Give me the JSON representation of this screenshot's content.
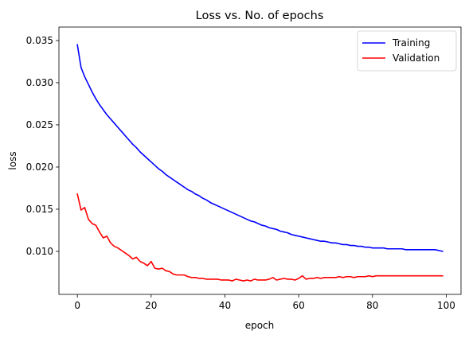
{
  "chart_data": {
    "type": "line",
    "title": "Loss vs. No. of epochs",
    "xlabel": "epoch",
    "ylabel": "loss",
    "xlim": [
      -5,
      104
    ],
    "ylim": [
      0.0049,
      0.0366
    ],
    "xticks": [
      0,
      20,
      40,
      60,
      80,
      100
    ],
    "xtick_labels": [
      "0",
      "20",
      "40",
      "60",
      "80",
      "100"
    ],
    "yticks": [
      0.01,
      0.015,
      0.02,
      0.025,
      0.03,
      0.035
    ],
    "ytick_labels": [
      "0.010",
      "0.015",
      "0.020",
      "0.025",
      "0.030",
      "0.035"
    ],
    "grid": false,
    "legend_position": "top-right",
    "series": [
      {
        "name": "Training",
        "color": "#0000ff",
        "x": [
          0,
          1,
          2,
          3,
          4,
          5,
          6,
          7,
          8,
          9,
          10,
          11,
          12,
          13,
          14,
          15,
          16,
          17,
          18,
          19,
          20,
          21,
          22,
          23,
          24,
          25,
          26,
          27,
          28,
          29,
          30,
          31,
          32,
          33,
          34,
          35,
          36,
          37,
          38,
          39,
          40,
          41,
          42,
          43,
          44,
          45,
          46,
          47,
          48,
          49,
          50,
          51,
          52,
          53,
          54,
          55,
          56,
          57,
          58,
          59,
          60,
          61,
          62,
          63,
          64,
          65,
          66,
          67,
          68,
          69,
          70,
          71,
          72,
          73,
          74,
          75,
          76,
          77,
          78,
          79,
          80,
          81,
          82,
          83,
          84,
          85,
          86,
          87,
          88,
          89,
          90,
          91,
          92,
          93,
          94,
          95,
          96,
          97,
          98,
          99
        ],
        "values": [
          0.0345,
          0.0318,
          0.0307,
          0.0298,
          0.0289,
          0.0281,
          0.0274,
          0.0268,
          0.0262,
          0.0257,
          0.0252,
          0.0247,
          0.0242,
          0.0237,
          0.0232,
          0.0227,
          0.0223,
          0.0218,
          0.0214,
          0.021,
          0.0206,
          0.0202,
          0.0198,
          0.0195,
          0.0191,
          0.0188,
          0.0185,
          0.0182,
          0.0179,
          0.0176,
          0.0173,
          0.0171,
          0.0168,
          0.0166,
          0.0163,
          0.0161,
          0.0158,
          0.0156,
          0.0154,
          0.0152,
          0.015,
          0.0148,
          0.0146,
          0.0144,
          0.0142,
          0.014,
          0.0138,
          0.0136,
          0.0135,
          0.0133,
          0.0131,
          0.013,
          0.0128,
          0.0127,
          0.0126,
          0.0124,
          0.0123,
          0.0122,
          0.012,
          0.0119,
          0.0118,
          0.0117,
          0.0116,
          0.0115,
          0.0114,
          0.0113,
          0.0112,
          0.0112,
          0.0111,
          0.011,
          0.011,
          0.0109,
          0.0108,
          0.0108,
          0.0107,
          0.0107,
          0.0106,
          0.0106,
          0.0105,
          0.0105,
          0.0104,
          0.0104,
          0.0104,
          0.0104,
          0.0103,
          0.0103,
          0.0103,
          0.0103,
          0.0103,
          0.0102,
          0.0102,
          0.0102,
          0.0102,
          0.0102,
          0.0102,
          0.0102,
          0.0102,
          0.0102,
          0.0101,
          0.01
        ]
      },
      {
        "name": "Validation",
        "color": "#ff0000",
        "x": [
          0,
          1,
          2,
          3,
          4,
          5,
          6,
          7,
          8,
          9,
          10,
          11,
          12,
          13,
          14,
          15,
          16,
          17,
          18,
          19,
          20,
          21,
          22,
          23,
          24,
          25,
          26,
          27,
          28,
          29,
          30,
          31,
          32,
          33,
          34,
          35,
          36,
          37,
          38,
          39,
          40,
          41,
          42,
          43,
          44,
          45,
          46,
          47,
          48,
          49,
          50,
          51,
          52,
          53,
          54,
          55,
          56,
          57,
          58,
          59,
          60,
          61,
          62,
          63,
          64,
          65,
          66,
          67,
          68,
          69,
          70,
          71,
          72,
          73,
          74,
          75,
          76,
          77,
          78,
          79,
          80,
          81,
          82,
          83,
          84,
          85,
          86,
          87,
          88,
          89,
          90,
          91,
          92,
          93,
          94,
          95,
          96,
          97,
          98,
          99
        ],
        "values": [
          0.0168,
          0.0149,
          0.0152,
          0.0138,
          0.0133,
          0.0131,
          0.0123,
          0.0116,
          0.0118,
          0.011,
          0.0106,
          0.0104,
          0.0101,
          0.0098,
          0.0095,
          0.0091,
          0.0093,
          0.0088,
          0.0086,
          0.0083,
          0.0088,
          0.008,
          0.0079,
          0.008,
          0.0077,
          0.0076,
          0.0073,
          0.0072,
          0.0072,
          0.0072,
          0.007,
          0.0069,
          0.0069,
          0.0068,
          0.0068,
          0.0067,
          0.0067,
          0.0067,
          0.0067,
          0.0066,
          0.0066,
          0.0066,
          0.0065,
          0.0067,
          0.0066,
          0.0065,
          0.0066,
          0.0065,
          0.0067,
          0.0066,
          0.0066,
          0.0066,
          0.0067,
          0.0069,
          0.0066,
          0.0067,
          0.0068,
          0.0067,
          0.0067,
          0.0066,
          0.0068,
          0.0071,
          0.0067,
          0.0068,
          0.0068,
          0.0069,
          0.0068,
          0.0069,
          0.0069,
          0.0069,
          0.0069,
          0.007,
          0.0069,
          0.007,
          0.007,
          0.0069,
          0.007,
          0.007,
          0.007,
          0.0071,
          0.007,
          0.0071,
          0.0071,
          0.0071,
          0.0071,
          0.0071,
          0.0071,
          0.0071,
          0.0071,
          0.0071,
          0.0071,
          0.0071,
          0.0071,
          0.0071,
          0.0071,
          0.0071,
          0.0071,
          0.0071,
          0.0071,
          0.0071
        ]
      }
    ]
  }
}
